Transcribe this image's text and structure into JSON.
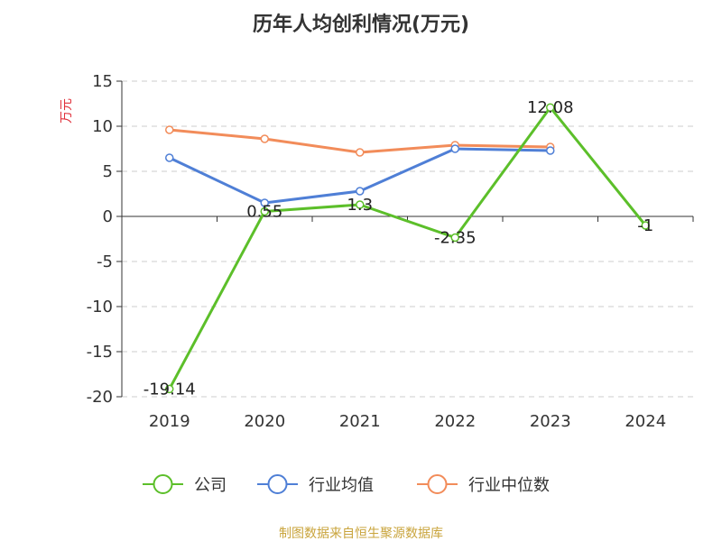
{
  "title": "历年人均创利情况(万元)",
  "source_note": "制图数据来自恒生聚源数据库",
  "chart_data": {
    "type": "line",
    "title": "历年人均创利情况(万元)",
    "ylabel": "万元",
    "xlabel": "",
    "categories": [
      "2019",
      "2020",
      "2021",
      "2022",
      "2023",
      "2024"
    ],
    "ylim": [
      -20,
      15
    ],
    "yticks": [
      15,
      10,
      5,
      0,
      -5,
      -10,
      -15,
      -20
    ],
    "grid": true,
    "legend_position": "bottom",
    "series": [
      {
        "name": "公司",
        "color": "#5cbf2a",
        "values": [
          -19.14,
          0.55,
          1.3,
          -2.35,
          12.08,
          -1
        ],
        "labels": [
          "-19.14",
          "0.55",
          "1.3",
          "-2.35",
          "12.08",
          "-1"
        ]
      },
      {
        "name": "行业均值",
        "color": "#4f7fd6",
        "values": [
          6.5,
          1.5,
          2.8,
          7.5,
          7.3,
          null
        ]
      },
      {
        "name": "行业中位数",
        "color": "#f28c5a",
        "values": [
          9.6,
          8.6,
          7.1,
          7.9,
          7.7,
          null
        ]
      }
    ]
  }
}
